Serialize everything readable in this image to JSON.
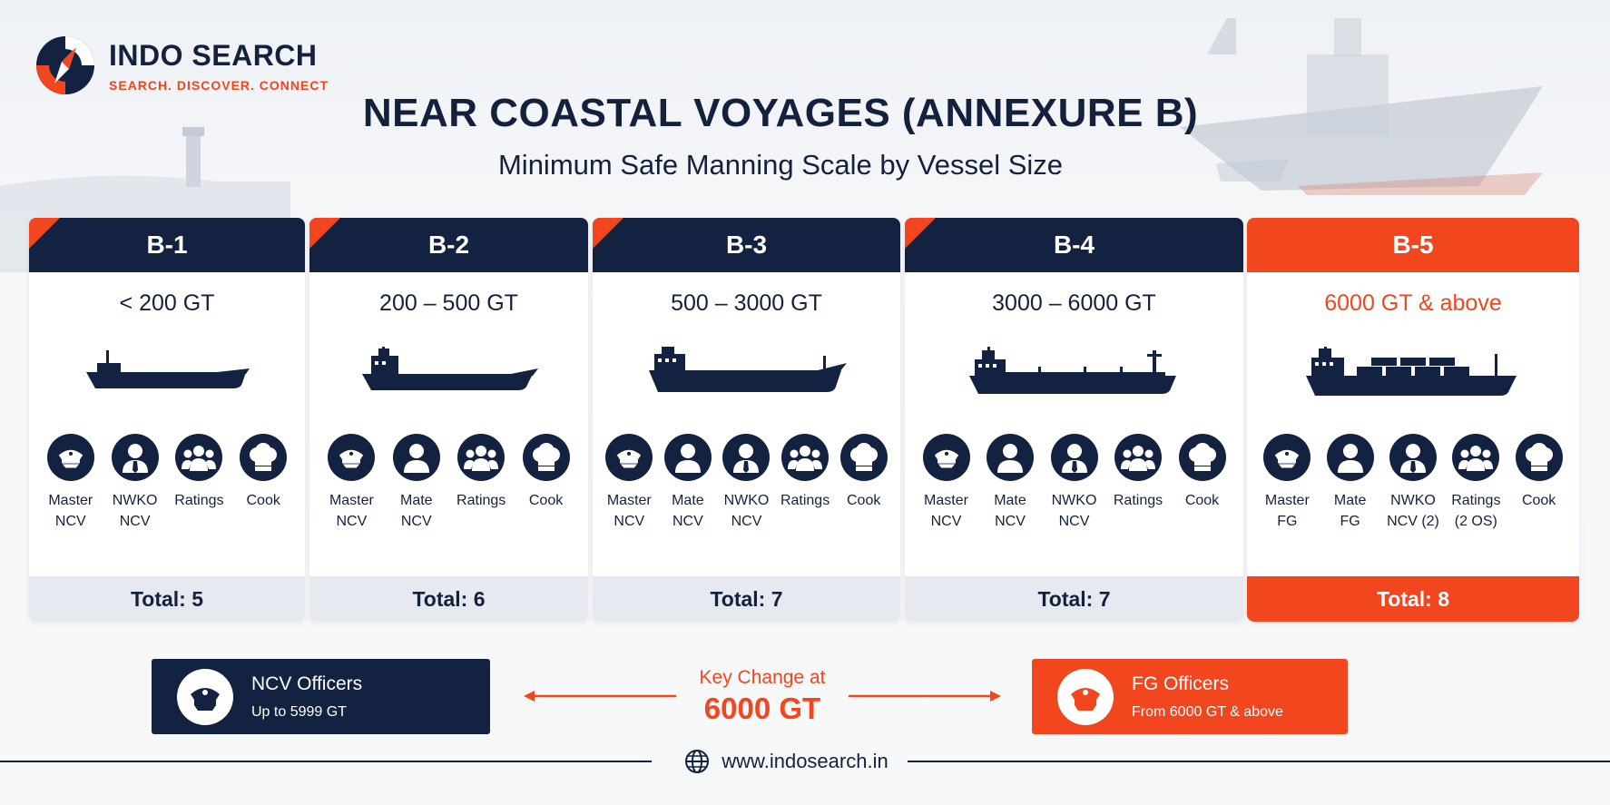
{
  "brand": {
    "name": "INDO SEARCH",
    "tagline": "SEARCH. DISCOVER. CONNECT"
  },
  "title": "NEAR COASTAL VOYAGES (ANNEXURE B)",
  "subtitle": "Minimum Safe Manning Scale by Vessel Size",
  "colors": {
    "navy": "#142241",
    "accent": "#f1461e",
    "total_bg": "#e6e9ef"
  },
  "categories": [
    {
      "code": "B-1",
      "range": "< 200 GT",
      "total": "Total: 5",
      "highlight": false,
      "ship": "small-ship-icon",
      "crew": [
        {
          "line1": "Master",
          "line2": "NCV",
          "icon": "captain-cap-icon"
        },
        {
          "line1": "NWKO",
          "line2": "NCV",
          "icon": "officer-tie-icon"
        },
        {
          "line1": "Ratings",
          "line2": "",
          "icon": "group-icon"
        },
        {
          "line1": "Cook",
          "line2": "",
          "icon": "chef-hat-icon"
        }
      ]
    },
    {
      "code": "B-2",
      "range": "200 – 500 GT",
      "total": "Total: 6",
      "highlight": false,
      "ship": "coaster-ship-icon",
      "crew": [
        {
          "line1": "Master",
          "line2": "NCV",
          "icon": "captain-cap-icon"
        },
        {
          "line1": "Mate",
          "line2": "NCV",
          "icon": "person-icon"
        },
        {
          "line1": "Ratings",
          "line2": "",
          "icon": "group-icon"
        },
        {
          "line1": "Cook",
          "line2": "",
          "icon": "chef-hat-icon"
        }
      ]
    },
    {
      "code": "B-3",
      "range": "500 – 3000 GT",
      "total": "Total: 7",
      "highlight": false,
      "ship": "cargo-ship-icon",
      "crew": [
        {
          "line1": "Master",
          "line2": "NCV",
          "icon": "captain-cap-icon"
        },
        {
          "line1": "Mate",
          "line2": "NCV",
          "icon": "person-icon"
        },
        {
          "line1": "NWKO",
          "line2": "NCV",
          "icon": "officer-tie-icon"
        },
        {
          "line1": "Ratings",
          "line2": "",
          "icon": "group-icon"
        },
        {
          "line1": "Cook",
          "line2": "",
          "icon": "chef-hat-icon"
        }
      ]
    },
    {
      "code": "B-4",
      "range": "3000 – 6000 GT",
      "total": "Total: 7",
      "highlight": false,
      "ship": "tanker-ship-icon",
      "crew": [
        {
          "line1": "Master",
          "line2": "NCV",
          "icon": "captain-cap-icon"
        },
        {
          "line1": "Mate",
          "line2": "NCV",
          "icon": "person-icon"
        },
        {
          "line1": "NWKO",
          "line2": "NCV",
          "icon": "officer-tie-icon"
        },
        {
          "line1": "Ratings",
          "line2": "",
          "icon": "group-icon"
        },
        {
          "line1": "Cook",
          "line2": "",
          "icon": "chef-hat-icon"
        }
      ]
    },
    {
      "code": "B-5",
      "range": "6000 GT & above",
      "total": "Total: 8",
      "highlight": true,
      "ship": "container-ship-icon",
      "crew": [
        {
          "line1": "Master",
          "line2": "FG",
          "icon": "captain-cap-icon"
        },
        {
          "line1": "Mate",
          "line2": "FG",
          "icon": "person-icon"
        },
        {
          "line1": "NWKO",
          "line2": "NCV (2)",
          "icon": "officer-tie-icon"
        },
        {
          "line1": "Ratings",
          "line2": "(2 OS)",
          "icon": "group-icon"
        },
        {
          "line1": "Cook",
          "line2": "",
          "icon": "chef-hat-icon"
        }
      ]
    }
  ],
  "legend": {
    "ncv": {
      "title": "NCV Officers",
      "sub": "Up to 5999 GT",
      "icon": "captain-cap-icon"
    },
    "fg": {
      "title": "FG Officers",
      "sub": "From 6000 GT & above",
      "icon": "captain-cap-icon"
    }
  },
  "key_change": {
    "label": "Key Change at",
    "value": "6000 GT"
  },
  "footer": {
    "url": "www.indosearch.in",
    "icon": "globe-icon"
  }
}
